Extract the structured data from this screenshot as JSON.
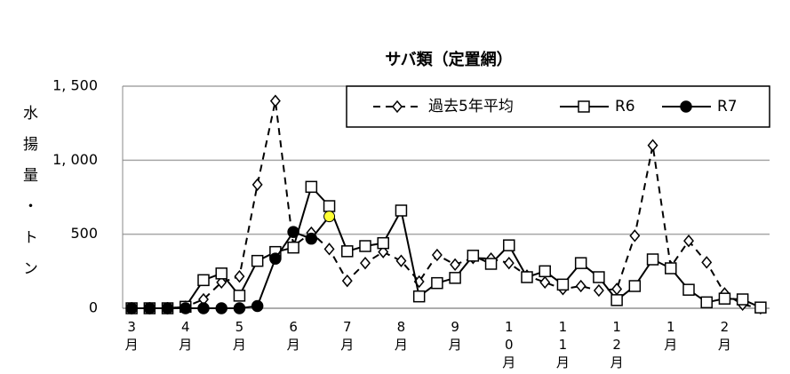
{
  "chart_data": {
    "type": "line",
    "title": "サバ類（定置網）",
    "y_label": "水揚量・トン",
    "categories": [
      "3月",
      null,
      null,
      "4月",
      null,
      null,
      "5月",
      null,
      null,
      "6月",
      null,
      null,
      "7月",
      null,
      null,
      "8月",
      null,
      null,
      "9月",
      null,
      null,
      "10月",
      null,
      null,
      "11月",
      null,
      null,
      "12月",
      null,
      null,
      "1月",
      null,
      null,
      "2月",
      null,
      null
    ],
    "series": [
      {
        "name": "過去5年平均",
        "color": "#000000",
        "marker": "diamond",
        "dashed": true,
        "values": [
          0,
          0,
          0,
          10,
          60,
          175,
          215,
          835,
          1400,
          420,
          510,
          400,
          185,
          305,
          380,
          320,
          180,
          360,
          295,
          340,
          335,
          305,
          220,
          175,
          130,
          150,
          120,
          130,
          490,
          1100,
          280,
          455,
          310,
          100,
          25,
          0
        ]
      },
      {
        "name": "R6",
        "color": "#000000",
        "marker": "square",
        "dashed": false,
        "values": [
          0,
          0,
          0,
          10,
          190,
          235,
          85,
          320,
          380,
          410,
          820,
          690,
          385,
          420,
          440,
          660,
          80,
          170,
          205,
          355,
          300,
          425,
          210,
          250,
          160,
          305,
          210,
          55,
          150,
          330,
          270,
          125,
          40,
          65,
          60,
          5
        ]
      },
      {
        "name": "R7",
        "color": "#000000",
        "marker": "circle",
        "dashed": false,
        "latest_point_color": "#ffff33",
        "values": [
          0,
          0,
          0,
          0,
          0,
          0,
          0,
          15,
          335,
          515,
          470,
          620,
          null,
          null,
          null,
          null,
          null,
          null,
          null,
          null,
          null,
          null,
          null,
          null,
          null,
          null,
          null,
          null,
          null,
          null,
          null,
          null,
          null,
          null,
          null,
          null
        ]
      }
    ],
    "ylim": [
      0,
      1500
    ],
    "yticks": [
      0,
      500,
      {
        "value": 1000,
        "label": "1, 000"
      },
      {
        "value": 1500,
        "label": "1, 500"
      }
    ],
    "grid": true,
    "legend": "top-right"
  }
}
